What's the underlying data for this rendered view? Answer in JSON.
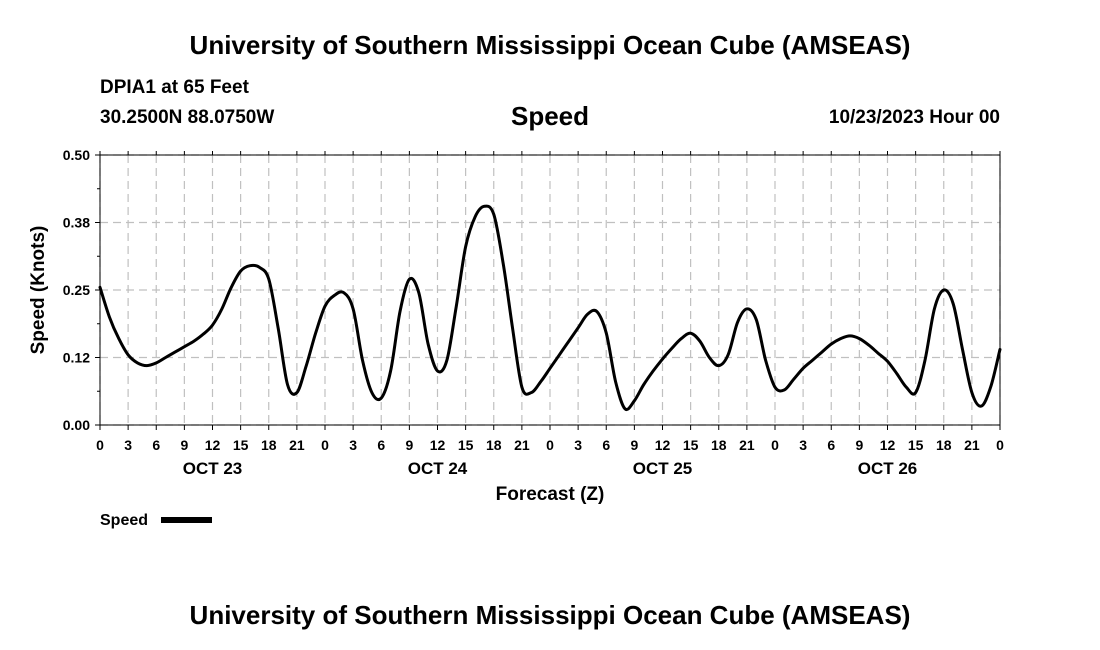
{
  "header": {
    "title": "University of Southern Mississippi Ocean Cube (AMSEAS)",
    "station": "DPIA1 at 65 Feet",
    "coords": "30.2500N  88.0750W",
    "timestamp": "10/23/2023 Hour 00"
  },
  "footer": {
    "title": "University of Southern Mississippi Ocean Cube (AMSEAS)"
  },
  "chart_data": {
    "type": "line",
    "title": "Speed",
    "xlabel": "Forecast (Z)",
    "ylabel": "Speed (Knots)",
    "ylim": [
      0,
      0.5
    ],
    "yticks": [
      0.0,
      0.125,
      0.25,
      0.375,
      0.5
    ],
    "ytick_labels": [
      "0.00",
      "0.12",
      "0.25",
      "0.38",
      "0.50"
    ],
    "xlim": [
      0,
      96
    ],
    "xtick_step_hours": 3,
    "xtick_labels": [
      "0",
      "3",
      "6",
      "9",
      "12",
      "15",
      "18",
      "21",
      "0",
      "3",
      "6",
      "9",
      "12",
      "15",
      "18",
      "21",
      "0",
      "3",
      "6",
      "9",
      "12",
      "15",
      "18",
      "21",
      "0",
      "3",
      "6",
      "9",
      "12",
      "15",
      "18",
      "21",
      "0"
    ],
    "day_labels": [
      {
        "label": "OCT 23",
        "hour": 12
      },
      {
        "label": "OCT 24",
        "hour": 36
      },
      {
        "label": "OCT 25",
        "hour": 60
      },
      {
        "label": "OCT 26",
        "hour": 84
      }
    ],
    "grid": true,
    "legend": {
      "label": "Speed",
      "position": "bottom-left"
    },
    "series": [
      {
        "name": "Speed",
        "color": "#000000",
        "x": [
          0,
          1,
          2,
          3,
          4,
          5,
          6,
          7,
          8,
          9,
          10,
          11,
          12,
          13,
          14,
          15,
          16,
          17,
          18,
          19,
          20,
          21,
          22,
          23,
          24,
          25,
          26,
          27,
          28,
          29,
          30,
          31,
          32,
          33,
          34,
          35,
          36,
          37,
          38,
          39,
          40,
          41,
          42,
          43,
          44,
          45,
          46,
          47,
          48,
          49,
          50,
          51,
          52,
          53,
          54,
          55,
          56,
          57,
          58,
          59,
          60,
          61,
          62,
          63,
          64,
          65,
          66,
          67,
          68,
          69,
          70,
          71,
          72,
          73,
          74,
          75,
          76,
          77,
          78,
          79,
          80,
          81,
          82,
          83,
          84,
          85,
          86,
          87,
          88,
          89,
          90,
          91,
          92,
          93,
          94,
          95,
          96
        ],
        "values": [
          0.255,
          0.2,
          0.16,
          0.13,
          0.115,
          0.11,
          0.115,
          0.125,
          0.135,
          0.145,
          0.155,
          0.168,
          0.185,
          0.215,
          0.255,
          0.285,
          0.295,
          0.292,
          0.27,
          0.18,
          0.075,
          0.06,
          0.11,
          0.17,
          0.22,
          0.24,
          0.245,
          0.215,
          0.12,
          0.06,
          0.05,
          0.1,
          0.21,
          0.27,
          0.245,
          0.15,
          0.1,
          0.12,
          0.22,
          0.33,
          0.385,
          0.405,
          0.39,
          0.3,
          0.18,
          0.07,
          0.06,
          0.08,
          0.105,
          0.13,
          0.155,
          0.18,
          0.205,
          0.21,
          0.17,
          0.08,
          0.03,
          0.045,
          0.075,
          0.1,
          0.122,
          0.142,
          0.16,
          0.17,
          0.155,
          0.125,
          0.11,
          0.13,
          0.19,
          0.215,
          0.195,
          0.12,
          0.07,
          0.065,
          0.085,
          0.105,
          0.12,
          0.135,
          0.15,
          0.16,
          0.165,
          0.16,
          0.148,
          0.133,
          0.118,
          0.095,
          0.07,
          0.06,
          0.12,
          0.215,
          0.25,
          0.225,
          0.14,
          0.06,
          0.035,
          0.07,
          0.14
        ]
      }
    ]
  }
}
